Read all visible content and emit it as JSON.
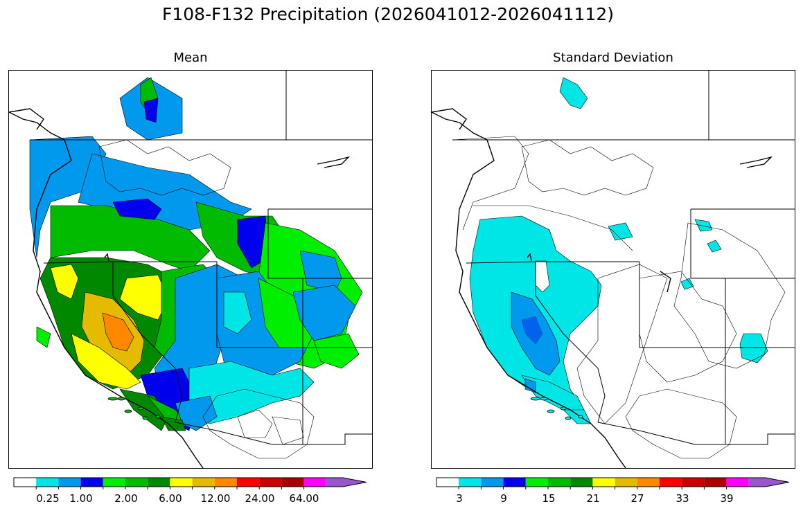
{
  "title": "F108-F132 Precipitation (2026041012-2026041112)",
  "panels": [
    {
      "subtitle": "Mean"
    },
    {
      "subtitle": "Standard Deviation"
    }
  ],
  "colorbar_colors": [
    "#ffffff",
    "#00e5e5",
    "#0099ee",
    "#0000ee",
    "#00ee00",
    "#00bb00",
    "#008800",
    "#ffff00",
    "#e5bb00",
    "#ff8800",
    "#ff0000",
    "#cc0000",
    "#aa0000",
    "#ff00ff",
    "#9955cc"
  ],
  "mean_colorbar": {
    "tick_labels": [
      "0.25",
      "1.00",
      "2.00",
      "6.00",
      "12.00",
      "24.00",
      "64.00"
    ]
  },
  "std_colorbar": {
    "tick_labels": [
      "3",
      "9",
      "15",
      "21",
      "27",
      "33",
      "39"
    ]
  }
}
